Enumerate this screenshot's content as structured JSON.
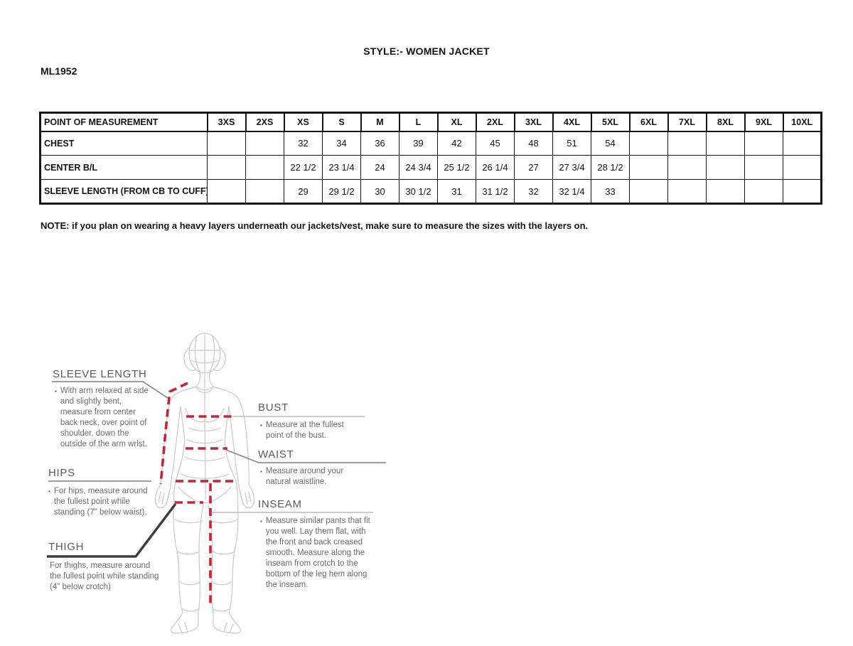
{
  "page": {
    "style_title": "STYLE:- WOMEN JACKET",
    "model_number": "ML1952",
    "note": "NOTE: if you plan on wearing a heavy layers underneath our jackets/vest, make sure to measure the sizes with the layers on."
  },
  "size_table": {
    "columns": [
      "POINT OF MEASUREMENT",
      "3XS",
      "2XS",
      "XS",
      "S",
      "M",
      "L",
      "XL",
      "2XL",
      "3XL",
      "4XL",
      "5XL",
      "6XL",
      "7XL",
      "8XL",
      "9XL",
      "10XL"
    ],
    "rows": [
      {
        "label": "CHEST",
        "values": [
          "",
          "",
          "32",
          "34",
          "36",
          "39",
          "42",
          "45",
          "48",
          "51",
          "54",
          "",
          "",
          "",
          "",
          ""
        ]
      },
      {
        "label": "CENTER B/L",
        "values": [
          "",
          "",
          "22 1/2",
          "23 1/4",
          "24",
          "24 3/4",
          "25 1/2",
          "26 1/4",
          "27",
          "27 3/4",
          "28 1/2",
          "",
          "",
          "",
          "",
          ""
        ]
      },
      {
        "label": "SLEEVE LENGTH (FROM CB TO CUFF)",
        "values": [
          "",
          "",
          "29",
          "29 1/2",
          "30",
          "30 1/2",
          "31",
          "31 1/2",
          "32",
          "32 1/4",
          "33",
          "",
          "",
          "",
          "",
          ""
        ]
      }
    ]
  },
  "measurement_guide": {
    "bullet_glyph": "▪",
    "colors": {
      "dash_red": "#c92433",
      "figure_outline": "#c7cac7",
      "heading_text": "#5a5a5c",
      "body_text": "#6b6b6d"
    },
    "sections": {
      "sleeve_length": {
        "title": "SLEEVE LENGTH",
        "description": "With arm relaxed at side and slightly bent, measure from center back neck, over point of shoulder, down the outside of the arm wrist."
      },
      "hips": {
        "title": "HIPS",
        "description": "For hips, measure around the fullest point while standing (7\" below waist)."
      },
      "thigh": {
        "title": "THIGH",
        "description": "For thighs, measure around the fullest point while standing (4\" below crotch)"
      },
      "bust": {
        "title": "BUST",
        "description": "Measure at the fullest point of the bust."
      },
      "waist": {
        "title": "WAIST",
        "description": "Measure around your natural waistline."
      },
      "inseam": {
        "title": "INSEAM",
        "description": "Measure similar pants that fit you well. Lay them flat, with the front and back creased smooth. Measure along the inseam from crotch to the bottom of the leg hem along the inseam."
      }
    }
  }
}
